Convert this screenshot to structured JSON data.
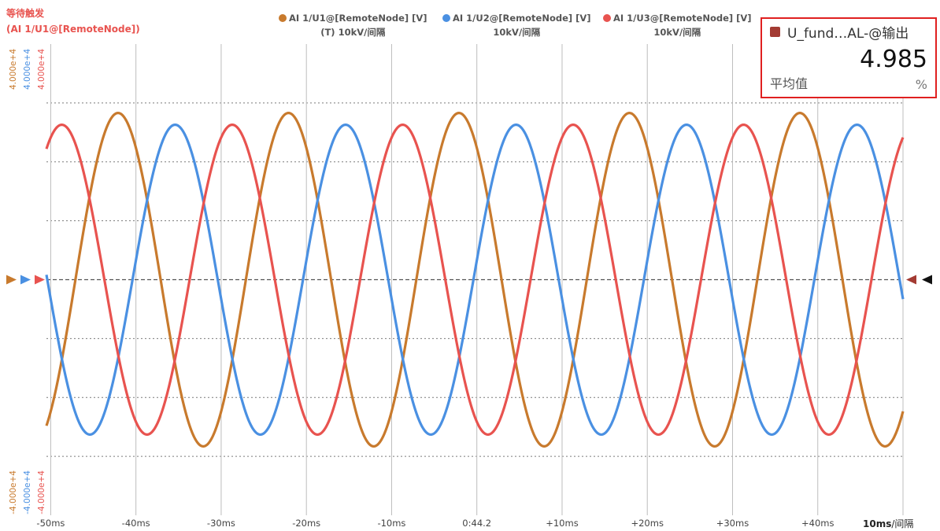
{
  "trigger": {
    "status": "等待触发",
    "source": "(AI 1/U1@[RemoteNode])"
  },
  "legend": [
    {
      "name": "AI 1/U1@[RemoteNode] [V]",
      "scale": "(T) 10kV/间隔",
      "color": "#c87a2d"
    },
    {
      "name": "AI 1/U2@[RemoteNode] [V]",
      "scale": "10kV/间隔",
      "color": "#4a90e2"
    },
    {
      "name": "AI 1/U3@[RemoteNode] [V]",
      "scale": "10kV/间隔",
      "color": "#e8534f"
    }
  ],
  "y_scale_labels": {
    "top": "4.000e+4",
    "bottom": "-4.000e+4"
  },
  "time_scale": {
    "value": "10ms",
    "unit": "/间隔"
  },
  "measurement": {
    "name": "U_fund…AL-@输出",
    "value": "4.985",
    "stat": "平均值",
    "unit": "%",
    "color": "#a33b33"
  },
  "chart_data": {
    "type": "line",
    "title": "",
    "xlabel": "",
    "ylabel": "",
    "x_tick_labels": [
      "-50ms",
      "-40ms",
      "-30ms",
      "-20ms",
      "-10ms",
      "0:44.2",
      "+10ms",
      "+20ms",
      "+30ms",
      "+40ms"
    ],
    "x_ticks_ms": [
      -50,
      -40,
      -30,
      -20,
      -10,
      0,
      10,
      20,
      30,
      40
    ],
    "xlim": [
      -50.5,
      50
    ],
    "ylim": [
      -40000,
      40000
    ],
    "grid": true,
    "series": [
      {
        "name": "AI 1/U1@[RemoteNode] [V]",
        "color": "#c87a2d",
        "amplitude": 28300,
        "frequency_hz": 50,
        "peak_time_ms": -42.1
      },
      {
        "name": "AI 1/U2@[RemoteNode] [V]",
        "color": "#4a90e2",
        "amplitude": 26300,
        "frequency_hz": 50,
        "peak_time_ms": -35.4
      },
      {
        "name": "AI 1/U3@[RemoteNode] [V]",
        "color": "#e8534f",
        "amplitude": 26300,
        "frequency_hz": 50,
        "peak_time_ms": -48.7
      }
    ]
  }
}
